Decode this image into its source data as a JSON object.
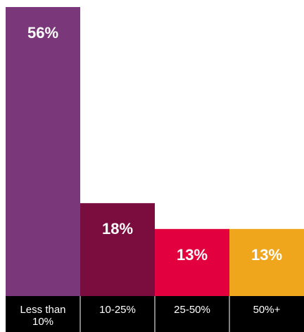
{
  "chart_data": {
    "type": "bar",
    "categories": [
      "Less than\n10%",
      "10-25%",
      "25-50%",
      "50%+"
    ],
    "values": [
      56,
      18,
      13,
      13
    ],
    "value_labels": [
      "56%",
      "18%",
      "13%",
      "13%"
    ],
    "bar_colors": [
      "#7a3779",
      "#7b0d3e",
      "#e2003e",
      "#efa61d"
    ],
    "category_band_color": "#000000",
    "value_label_color": "#ffffff",
    "category_label_color": "#ffffff",
    "ylim": [
      0,
      56
    ],
    "grid": false,
    "legend": "none",
    "title": "",
    "xlabel": "",
    "ylabel": ""
  }
}
